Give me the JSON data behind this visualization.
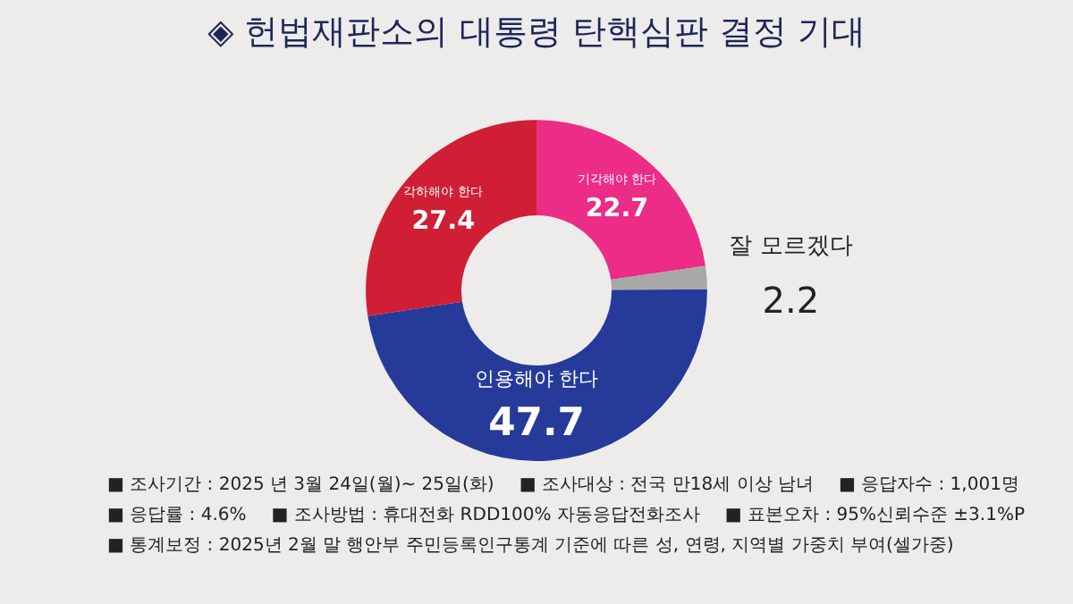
{
  "chart_data": {
    "type": "donut",
    "title": "◈ 헌법재판소의 대통령 탄핵심판 결정 기대",
    "categories": [
      "기각해야 한다",
      "잘 모르겠다",
      "인용해야 한다",
      "각하해야 한다"
    ],
    "values": [
      22.7,
      2.2,
      47.7,
      27.4
    ],
    "colors": [
      "#ec2c86",
      "#a8a8a8",
      "#263a9a",
      "#d01f35"
    ],
    "data_labels": true,
    "legend": false,
    "annotations": [
      "■ 조사기간 : 2025 년 3월 24일(월)~ 25일(화)",
      "■ 조사대상 : 전국 만18세 이상 남녀",
      "■ 응답자수 : 1,001명",
      "■ 응답률 : 4.6%",
      "■ 조사방법 : 휴대전화 RDD100% 자동응답전화조사",
      "■ 표본오차 : 95%신뢰수준 ±3.1%P",
      "■ 통계보정 : 2025년 2월 말 행안부 주민등록인구통계 기준에 따른 성, 연령, 지역별 가중치 부여(셀가중)"
    ]
  }
}
